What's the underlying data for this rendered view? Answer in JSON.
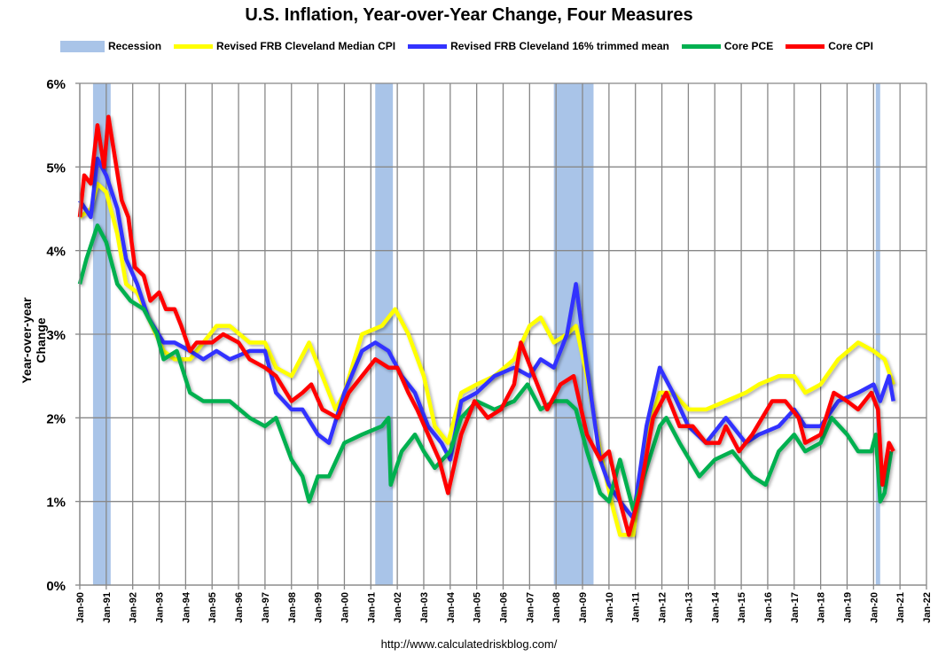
{
  "chart_data": {
    "type": "line",
    "title": "U.S. Inflation, Year-over-Year Change, Four Measures",
    "ylabel": "Year-over-year Change",
    "xlabel": "",
    "ylim": [
      0,
      6
    ],
    "yticks": [
      "0%",
      "1%",
      "2%",
      "3%",
      "4%",
      "5%",
      "6%"
    ],
    "xlim": [
      "1990-01",
      "2022-01"
    ],
    "xticks": [
      "Jan-90",
      "Jan-91",
      "Jan-92",
      "Jan-93",
      "Jan-94",
      "Jan-95",
      "Jan-96",
      "Jan-97",
      "Jan-98",
      "Jan-99",
      "Jan-00",
      "Jan-01",
      "Jan-02",
      "Jan-03",
      "Jan-04",
      "Jan-05",
      "Jan-06",
      "Jan-07",
      "Jan-08",
      "Jan-09",
      "Jan-10",
      "Jan-11",
      "Jan-12",
      "Jan-13",
      "Jan-14",
      "Jan-15",
      "Jan-16",
      "Jan-17",
      "Jan-18",
      "Jan-19",
      "Jan-20",
      "Jan-21",
      "Jan-22"
    ],
    "grid": true,
    "legend_position": "top",
    "source": "http://www.calculatedriskblog.com/",
    "recession": {
      "name": "Recession",
      "color": "#a9c4e8",
      "periods": [
        [
          "1990-07",
          "1991-03"
        ],
        [
          "2001-03",
          "2001-11"
        ],
        [
          "2007-12",
          "2009-06"
        ],
        [
          "2020-02",
          "2020-04"
        ]
      ]
    },
    "series": [
      {
        "name": "Revised FRB Cleveland Median CPI",
        "color": "#ffff00",
        "x": [
          "1990-01",
          "1990-06",
          "1990-09",
          "1991-01",
          "1991-06",
          "1991-10",
          "1992-03",
          "1992-08",
          "1993-03",
          "1993-08",
          "1994-03",
          "1994-09",
          "1995-03",
          "1995-09",
          "1996-06",
          "1997-01",
          "1997-06",
          "1998-01",
          "1998-09",
          "1999-03",
          "1999-09",
          "2000-01",
          "2000-09",
          "2001-06",
          "2001-12",
          "2002-06",
          "2003-01",
          "2003-06",
          "2003-12",
          "2004-06",
          "2005-01",
          "2005-09",
          "2006-06",
          "2007-01",
          "2007-06",
          "2007-12",
          "2008-06",
          "2008-10",
          "2009-03",
          "2009-09",
          "2010-03",
          "2010-06",
          "2010-12",
          "2011-06",
          "2011-12",
          "2012-06",
          "2013-01",
          "2013-09",
          "2014-06",
          "2015-03",
          "2015-09",
          "2016-06",
          "2017-01",
          "2017-06",
          "2018-01",
          "2018-09",
          "2019-06",
          "2020-01",
          "2020-06",
          "2020-10"
        ],
        "values": [
          4.4,
          4.5,
          4.8,
          4.7,
          4.2,
          3.6,
          3.5,
          3.2,
          2.8,
          2.7,
          2.7,
          2.9,
          3.1,
          3.1,
          2.9,
          2.9,
          2.6,
          2.5,
          2.9,
          2.5,
          2.1,
          2.3,
          3.0,
          3.1,
          3.3,
          3.0,
          2.5,
          1.9,
          1.7,
          2.3,
          2.4,
          2.5,
          2.7,
          3.1,
          3.2,
          2.9,
          3.0,
          3.1,
          2.5,
          1.6,
          0.9,
          0.6,
          0.6,
          1.8,
          2.3,
          2.3,
          2.1,
          2.1,
          2.2,
          2.3,
          2.4,
          2.5,
          2.5,
          2.3,
          2.4,
          2.7,
          2.9,
          2.8,
          2.7,
          2.4
        ]
      },
      {
        "name": "Revised FRB Cleveland 16% trimmed mean",
        "color": "#3333ff",
        "x": [
          "1990-01",
          "1990-06",
          "1990-09",
          "1991-01",
          "1991-06",
          "1991-10",
          "1992-03",
          "1992-08",
          "1993-03",
          "1993-08",
          "1994-03",
          "1994-09",
          "1995-03",
          "1995-09",
          "1996-06",
          "1997-01",
          "1997-06",
          "1998-01",
          "1998-06",
          "1999-01",
          "1999-06",
          "2000-01",
          "2000-09",
          "2001-03",
          "2001-09",
          "2002-03",
          "2002-09",
          "2003-03",
          "2003-09",
          "2004-01",
          "2004-06",
          "2005-01",
          "2005-09",
          "2006-06",
          "2007-01",
          "2007-06",
          "2007-12",
          "2008-06",
          "2008-10",
          "2009-03",
          "2009-09",
          "2010-01",
          "2010-06",
          "2010-12",
          "2011-06",
          "2011-12",
          "2012-06",
          "2013-01",
          "2013-09",
          "2014-06",
          "2015-03",
          "2015-09",
          "2016-06",
          "2017-01",
          "2017-06",
          "2018-01",
          "2018-09",
          "2019-06",
          "2020-01",
          "2020-04",
          "2020-08",
          "2020-10"
        ],
        "values": [
          4.6,
          4.4,
          5.1,
          4.9,
          4.5,
          3.9,
          3.6,
          3.2,
          2.9,
          2.9,
          2.8,
          2.7,
          2.8,
          2.7,
          2.8,
          2.8,
          2.3,
          2.1,
          2.1,
          1.8,
          1.7,
          2.3,
          2.8,
          2.9,
          2.8,
          2.5,
          2.3,
          1.9,
          1.7,
          1.5,
          2.2,
          2.3,
          2.5,
          2.6,
          2.5,
          2.7,
          2.6,
          3.0,
          3.6,
          2.6,
          1.5,
          1.2,
          1.0,
          0.8,
          1.9,
          2.6,
          2.3,
          1.9,
          1.7,
          2.0,
          1.7,
          1.8,
          1.9,
          2.1,
          1.9,
          1.9,
          2.2,
          2.3,
          2.4,
          2.2,
          2.5,
          2.2
        ]
      },
      {
        "name": "Core PCE",
        "color": "#00b050",
        "x": [
          "1990-01",
          "1990-04",
          "1990-09",
          "1991-01",
          "1991-06",
          "1991-12",
          "1992-06",
          "1992-12",
          "1993-03",
          "1993-09",
          "1994-03",
          "1994-09",
          "1995-03",
          "1995-09",
          "1996-06",
          "1997-01",
          "1997-06",
          "1998-01",
          "1998-06",
          "1998-09",
          "1999-01",
          "1999-06",
          "2000-01",
          "2000-09",
          "2001-06",
          "2001-09",
          "2001-10",
          "2002-03",
          "2002-09",
          "2003-01",
          "2003-06",
          "2004-01",
          "2004-06",
          "2005-01",
          "2005-09",
          "2006-06",
          "2006-12",
          "2007-06",
          "2007-12",
          "2008-06",
          "2008-10",
          "2009-03",
          "2009-09",
          "2010-01",
          "2010-06",
          "2010-12",
          "2011-06",
          "2011-12",
          "2012-03",
          "2012-09",
          "2013-06",
          "2014-01",
          "2014-09",
          "2015-06",
          "2015-12",
          "2016-06",
          "2017-01",
          "2017-06",
          "2018-01",
          "2018-06",
          "2019-01",
          "2019-06",
          "2019-12",
          "2020-02",
          "2020-04",
          "2020-06",
          "2020-09"
        ],
        "values": [
          3.6,
          3.9,
          4.3,
          4.1,
          3.6,
          3.4,
          3.3,
          3.0,
          2.7,
          2.8,
          2.3,
          2.2,
          2.2,
          2.2,
          2.0,
          1.9,
          2.0,
          1.5,
          1.3,
          1.0,
          1.3,
          1.3,
          1.7,
          1.8,
          1.9,
          2.0,
          1.2,
          1.6,
          1.8,
          1.6,
          1.4,
          1.6,
          2.0,
          2.2,
          2.1,
          2.2,
          2.4,
          2.1,
          2.2,
          2.2,
          2.1,
          1.6,
          1.1,
          1.0,
          1.5,
          0.9,
          1.4,
          1.9,
          2.0,
          1.7,
          1.3,
          1.5,
          1.6,
          1.3,
          1.2,
          1.6,
          1.8,
          1.6,
          1.7,
          2.0,
          1.8,
          1.6,
          1.6,
          1.8,
          1.0,
          1.1,
          1.6
        ]
      },
      {
        "name": "Core CPI",
        "color": "#ff0000",
        "x": [
          "1990-01",
          "1990-03",
          "1990-06",
          "1990-09",
          "1990-12",
          "1991-02",
          "1991-05",
          "1991-08",
          "1991-11",
          "1992-02",
          "1992-06",
          "1992-09",
          "1993-01",
          "1993-04",
          "1993-08",
          "1993-11",
          "1994-03",
          "1994-06",
          "1994-09",
          "1995-01",
          "1995-06",
          "1996-01",
          "1996-06",
          "1997-01",
          "1997-06",
          "1998-01",
          "1998-06",
          "1998-10",
          "1999-03",
          "1999-10",
          "2000-03",
          "2000-09",
          "2001-03",
          "2001-09",
          "2002-01",
          "2002-06",
          "2002-10",
          "2003-03",
          "2003-08",
          "2003-12",
          "2004-06",
          "2004-12",
          "2005-06",
          "2005-12",
          "2006-06",
          "2006-09",
          "2007-03",
          "2007-09",
          "2008-03",
          "2008-09",
          "2009-03",
          "2009-09",
          "2010-01",
          "2010-06",
          "2010-10",
          "2011-03",
          "2011-09",
          "2012-03",
          "2012-09",
          "2013-03",
          "2013-09",
          "2014-03",
          "2014-06",
          "2014-12",
          "2015-06",
          "2016-03",
          "2016-09",
          "2017-03",
          "2017-06",
          "2018-01",
          "2018-07",
          "2019-01",
          "2019-06",
          "2019-12",
          "2020-03",
          "2020-05",
          "2020-08",
          "2020-10"
        ],
        "values": [
          4.4,
          4.9,
          4.8,
          5.5,
          5.0,
          5.6,
          5.1,
          4.6,
          4.4,
          3.8,
          3.7,
          3.4,
          3.5,
          3.3,
          3.3,
          3.1,
          2.8,
          2.9,
          2.9,
          2.9,
          3.0,
          2.9,
          2.7,
          2.6,
          2.5,
          2.2,
          2.3,
          2.4,
          2.1,
          2.0,
          2.3,
          2.5,
          2.7,
          2.6,
          2.6,
          2.3,
          2.1,
          1.8,
          1.5,
          1.1,
          1.8,
          2.2,
          2.0,
          2.1,
          2.4,
          2.9,
          2.5,
          2.1,
          2.4,
          2.5,
          1.8,
          1.5,
          1.6,
          1.0,
          0.6,
          1.1,
          2.0,
          2.3,
          1.9,
          1.9,
          1.7,
          1.7,
          1.9,
          1.6,
          1.8,
          2.2,
          2.2,
          2.0,
          1.7,
          1.8,
          2.3,
          2.2,
          2.1,
          2.3,
          2.1,
          1.2,
          1.7,
          1.6
        ]
      }
    ]
  }
}
